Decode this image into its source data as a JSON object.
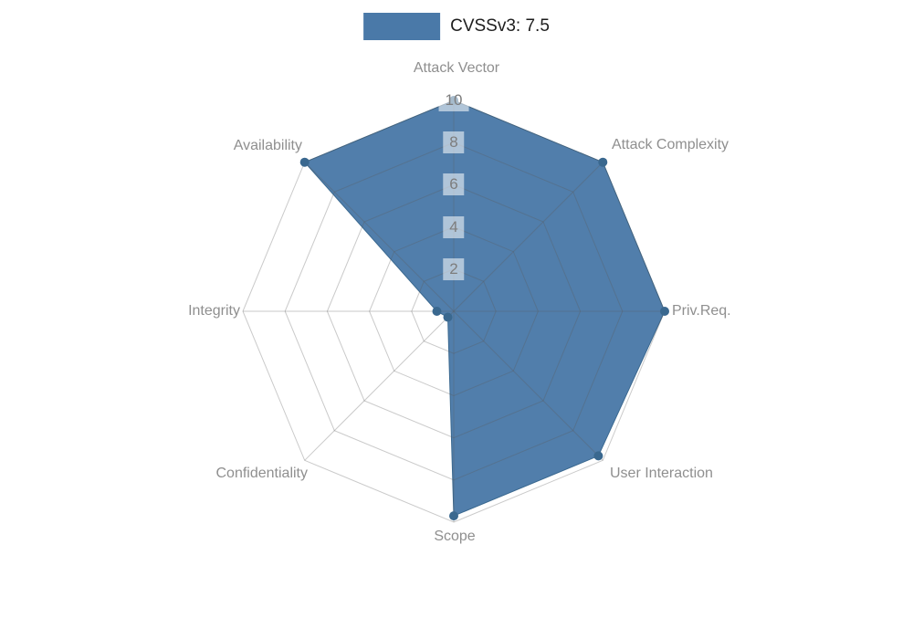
{
  "legend": {
    "swatch_color": "#4a79a8",
    "label": "CVSSv3: 7.5"
  },
  "chart_data": {
    "type": "radar",
    "title": "CVSSv3: 7.5",
    "categories": [
      "Attack Vector",
      "Attack Complexity",
      "Priv.Req.",
      "User Interaction",
      "Scope",
      "Confidentiality",
      "Integrity",
      "Availability"
    ],
    "series": [
      {
        "name": "CVSSv3: 7.5",
        "color": "#4a79a8",
        "values": [
          10,
          10,
          10,
          9.7,
          9.7,
          0.4,
          0.8,
          10
        ]
      }
    ],
    "ticks": [
      2,
      4,
      6,
      8,
      10
    ],
    "rlim": [
      0,
      10
    ],
    "grid": true,
    "legend_position": "top-center"
  }
}
